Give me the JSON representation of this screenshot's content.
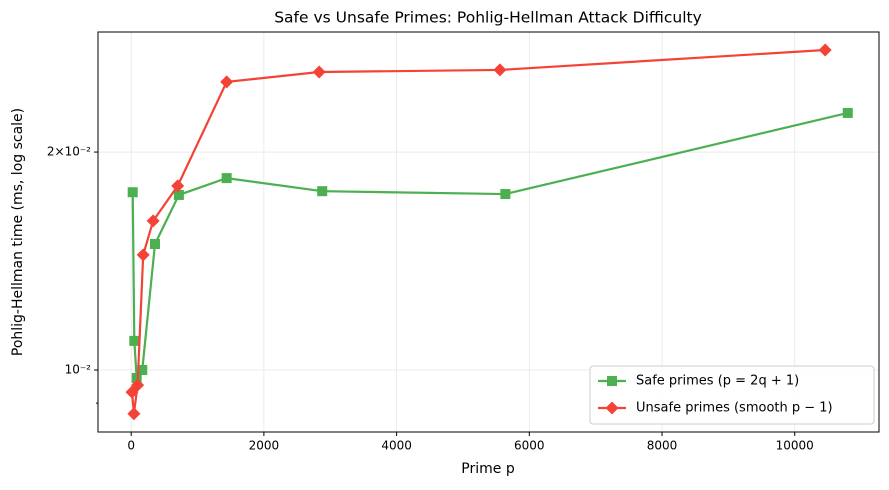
{
  "chart_data": {
    "type": "line",
    "title": "Safe vs Unsafe Primes: Pohlig-Hellman Attack Difficulty",
    "x_label": "Prime p",
    "y_label": "Pohlig-Hellman time (ms, log scale)",
    "y_scale": "log",
    "grid": true,
    "legend_position": "lower right",
    "xlim": [
      -500,
      11270
    ],
    "xticks": [
      0,
      2000,
      4000,
      6000,
      8000,
      10000
    ],
    "ylim": [
      0.00821,
      0.0293
    ],
    "yticks": [
      {
        "value": 0.01,
        "label": "10⁻²"
      },
      {
        "value": 0.02,
        "label": "2×10⁻²"
      }
    ],
    "yminor_ticks": [
      0.009
    ],
    "series": [
      {
        "name": "Safe primes (p = 2q + 1)",
        "color": "#4caf50",
        "marker": "square",
        "x": [
          23,
          47,
          83,
          167,
          359,
          719,
          1439,
          2879,
          5639,
          10799
        ],
        "values": [
          0.0176,
          0.01097,
          0.00975,
          0.01,
          0.01493,
          0.01745,
          0.01841,
          0.01766,
          0.0175,
          0.02265
        ]
      },
      {
        "name": "Unsafe primes (smooth p − 1)",
        "color": "#f44336",
        "marker": "diamond",
        "x": [
          13,
          41,
          97,
          181,
          331,
          701,
          1439,
          2833,
          5557,
          10459
        ],
        "values": [
          0.00932,
          0.0087,
          0.00953,
          0.01442,
          0.01607,
          0.01796,
          0.025,
          0.0258,
          0.02597,
          0.02767
        ]
      }
    ]
  }
}
